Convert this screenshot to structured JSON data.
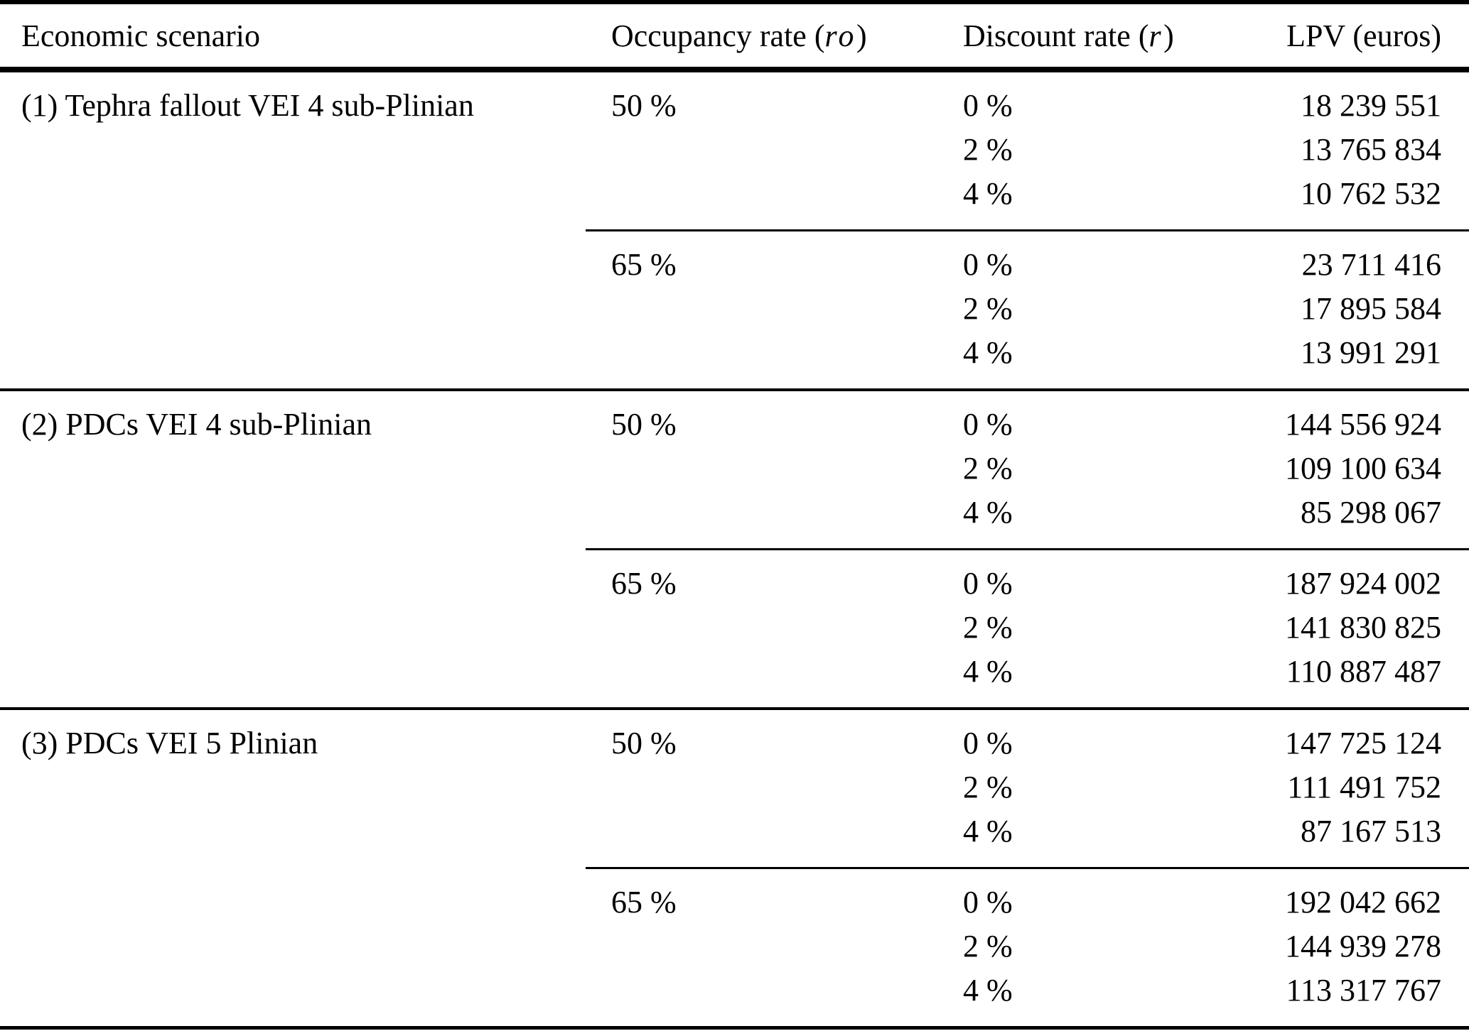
{
  "table": {
    "headers": {
      "scenario": "Economic scenario",
      "occupancy_prefix": "Occupancy rate (",
      "occupancy_symbol": "ro",
      "occupancy_suffix": ")",
      "discount_prefix": "Discount rate (",
      "discount_symbol": "r",
      "discount_suffix": ")",
      "lpv": "LPV (euros)"
    },
    "blocks": [
      {
        "scenario": "(1) Tephra fallout VEI 4 sub-Plinian",
        "groups": [
          {
            "occupancy": "50 %",
            "rows": [
              {
                "discount": "0 %",
                "lpv": "18 239 551"
              },
              {
                "discount": "2 %",
                "lpv": "13 765 834"
              },
              {
                "discount": "4 %",
                "lpv": "10 762 532"
              }
            ]
          },
          {
            "occupancy": "65 %",
            "rows": [
              {
                "discount": "0 %",
                "lpv": "23 711 416"
              },
              {
                "discount": "2 %",
                "lpv": "17 895 584"
              },
              {
                "discount": "4 %",
                "lpv": "13 991 291"
              }
            ]
          }
        ]
      },
      {
        "scenario": "(2) PDCs VEI 4 sub-Plinian",
        "groups": [
          {
            "occupancy": "50 %",
            "rows": [
              {
                "discount": "0 %",
                "lpv": "144 556 924"
              },
              {
                "discount": "2 %",
                "lpv": "109 100 634"
              },
              {
                "discount": "4 %",
                "lpv": "85 298 067"
              }
            ]
          },
          {
            "occupancy": "65 %",
            "rows": [
              {
                "discount": "0 %",
                "lpv": "187 924 002"
              },
              {
                "discount": "2 %",
                "lpv": "141 830 825"
              },
              {
                "discount": "4 %",
                "lpv": "110 887 487"
              }
            ]
          }
        ]
      },
      {
        "scenario": "(3) PDCs VEI 5 Plinian",
        "groups": [
          {
            "occupancy": "50 %",
            "rows": [
              {
                "discount": "0 %",
                "lpv": "147 725 124"
              },
              {
                "discount": "2 %",
                "lpv": "111 491 752"
              },
              {
                "discount": "4 %",
                "lpv": "87 167 513"
              }
            ]
          },
          {
            "occupancy": "65 %",
            "rows": [
              {
                "discount": "0 %",
                "lpv": "192 042 662"
              },
              {
                "discount": "2 %",
                "lpv": "144 939 278"
              },
              {
                "discount": "4 %",
                "lpv": "113 317 767"
              }
            ]
          }
        ]
      }
    ]
  }
}
